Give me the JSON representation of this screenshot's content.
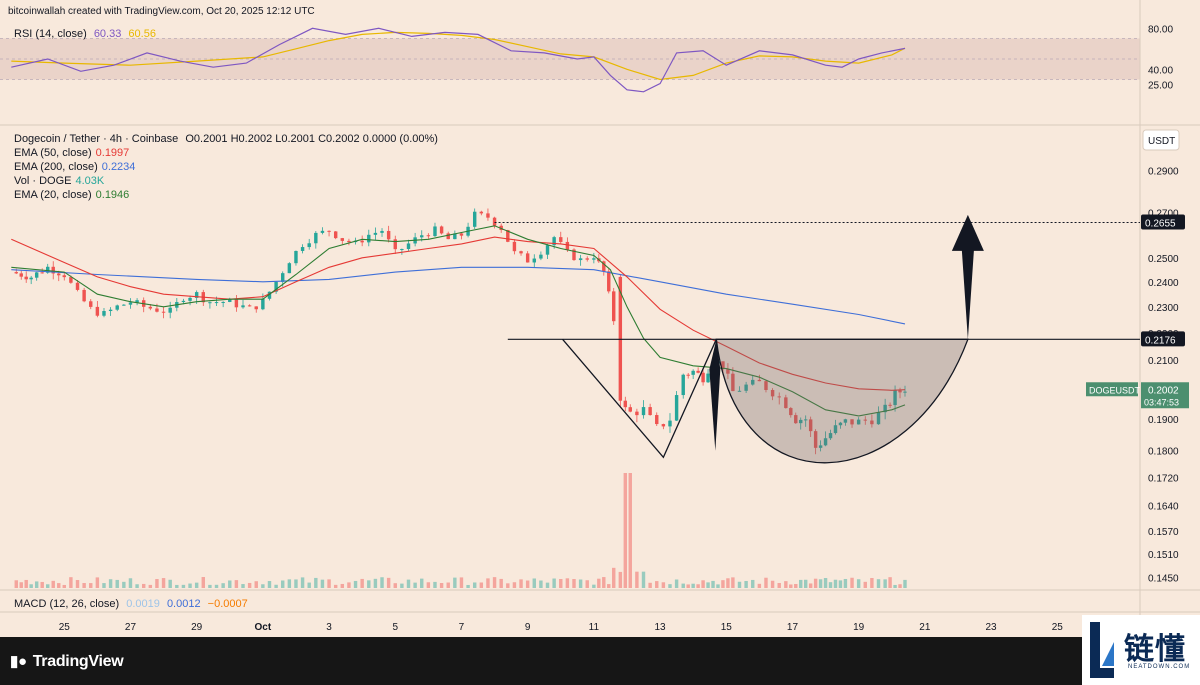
{
  "header": {
    "credit": "bitcoinwallah created with TradingView.com, Oct 20, 2025 12:12 UTC"
  },
  "rsi_legend": {
    "name": "RSI (14, close)",
    "value": "60.33",
    "ma_value": "60.56"
  },
  "main_legend": {
    "symbol": "Dogecoin / Tether · 4h · Coinbase",
    "ohlc": "O0.2001  H0.2002  L0.2001  C0.2002  0.0000 (0.00%)",
    "ema50_label": "EMA (50, close)",
    "ema50_value": "0.1997",
    "ema200_label": "EMA (200, close)",
    "ema200_value": "0.2234",
    "vol_label": "Vol · DOGE",
    "vol_value": "4.03K",
    "ema20_label": "EMA (20, close)",
    "ema20_value": "0.1946"
  },
  "macd_legend": {
    "name": "MACD (12, 26, close)",
    "v1": "0.0019",
    "v2": "0.0012",
    "v3": "−0.0007"
  },
  "badges": {
    "quote": "USDT",
    "target": "0.2655",
    "neckline": "0.2176",
    "symbol": "DOGEUSDT",
    "last": "0.2002",
    "countdown": "03:47:53"
  },
  "colors": {
    "up": "#26a69a",
    "down": "#ef5350",
    "ema20": "#2e7d32",
    "ema50": "#e53935",
    "ema200": "#3f6fd8",
    "rsi": "#7e57c2",
    "rsi_ma": "#e8b800",
    "background": "#f8e9dc"
  },
  "footer": {
    "brand": "TradingView",
    "watermark_cn": "链懂",
    "watermark_en": "NEATDOWN.COM"
  },
  "chart_data": [
    {
      "type": "candlestick",
      "title": "Dogecoin / Tether · 4h · Coinbase",
      "price_ticks": [
        "0.2900",
        "0.2700",
        "0.2500",
        "0.2400",
        "0.2300",
        "0.2200",
        "0.2100",
        "0.2000",
        "0.1900",
        "0.1800",
        "0.1720",
        "0.1640",
        "0.1570",
        "0.1510",
        "0.1450"
      ],
      "x_ticks": [
        "25",
        "27",
        "29",
        "Oct",
        "3",
        "5",
        "7",
        "9",
        "11",
        "13",
        "15",
        "17",
        "19",
        "21",
        "23",
        "25"
      ],
      "x_tick_days": [
        -6,
        -4,
        -2,
        0,
        2,
        4,
        6,
        8,
        10,
        12,
        14,
        16,
        18,
        20,
        22,
        24
      ],
      "ylim": [
        0.1415,
        0.3004
      ],
      "xlim_days": [
        -7.7,
        26.5
      ],
      "scale": "log",
      "close_path": [
        [
          -7.6,
          0.244
        ],
        [
          -7.0,
          0.242
        ],
        [
          -6.5,
          0.246
        ],
        [
          -6.0,
          0.243
        ],
        [
          -5.6,
          0.235
        ],
        [
          -5.2,
          0.229
        ],
        [
          -4.8,
          0.227
        ],
        [
          -4.4,
          0.23
        ],
        [
          -4.0,
          0.232
        ],
        [
          -3.6,
          0.23
        ],
        [
          -3.2,
          0.229
        ],
        [
          -2.8,
          0.228
        ],
        [
          -2.4,
          0.234
        ],
        [
          -2.0,
          0.235
        ],
        [
          -1.6,
          0.232
        ],
        [
          -1.2,
          0.232
        ],
        [
          -0.8,
          0.231
        ],
        [
          -0.4,
          0.229
        ],
        [
          0.0,
          0.232
        ],
        [
          0.4,
          0.24
        ],
        [
          0.8,
          0.249
        ],
        [
          1.2,
          0.256
        ],
        [
          1.6,
          0.26
        ],
        [
          2.0,
          0.262
        ],
        [
          2.4,
          0.258
        ],
        [
          2.8,
          0.256
        ],
        [
          3.2,
          0.26
        ],
        [
          3.6,
          0.262
        ],
        [
          4.0,
          0.252
        ],
        [
          4.4,
          0.256
        ],
        [
          4.8,
          0.26
        ],
        [
          5.2,
          0.262
        ],
        [
          5.6,
          0.258
        ],
        [
          6.0,
          0.26
        ],
        [
          6.4,
          0.269
        ],
        [
          6.8,
          0.268
        ],
        [
          7.2,
          0.263
        ],
        [
          7.6,
          0.252
        ],
        [
          8.0,
          0.249
        ],
        [
          8.4,
          0.253
        ],
        [
          8.8,
          0.259
        ],
        [
          9.2,
          0.252
        ],
        [
          9.6,
          0.249
        ],
        [
          10.0,
          0.251
        ],
        [
          10.3,
          0.244
        ],
        [
          10.6,
          0.225
        ],
        [
          10.8,
          0.194
        ],
        [
          11.1,
          0.192
        ],
        [
          11.5,
          0.193
        ],
        [
          11.9,
          0.187
        ],
        [
          12.3,
          0.19
        ],
        [
          12.7,
          0.205
        ],
        [
          13.0,
          0.206
        ],
        [
          13.3,
          0.204
        ],
        [
          13.6,
          0.21
        ],
        [
          13.9,
          0.208
        ],
        [
          14.2,
          0.199
        ],
        [
          14.6,
          0.201
        ],
        [
          15.0,
          0.202
        ],
        [
          15.4,
          0.199
        ],
        [
          15.8,
          0.195
        ],
        [
          16.1,
          0.19
        ],
        [
          16.4,
          0.19
        ],
        [
          16.7,
          0.181
        ],
        [
          17.0,
          0.184
        ],
        [
          17.3,
          0.187
        ],
        [
          17.6,
          0.189
        ],
        [
          18.0,
          0.189
        ],
        [
          18.4,
          0.19
        ],
        [
          18.8,
          0.193
        ],
        [
          19.1,
          0.198
        ],
        [
          19.4,
          0.2002
        ]
      ],
      "volume_spike_day": 11.0,
      "ema20": [
        [
          -7.6,
          0.246
        ],
        [
          -6,
          0.244
        ],
        [
          -5,
          0.235
        ],
        [
          -4,
          0.232
        ],
        [
          -3,
          0.23
        ],
        [
          -2,
          0.232
        ],
        [
          -1,
          0.233
        ],
        [
          0,
          0.233
        ],
        [
          1,
          0.243
        ],
        [
          2,
          0.254
        ],
        [
          3,
          0.258
        ],
        [
          4,
          0.257
        ],
        [
          5,
          0.258
        ],
        [
          6,
          0.261
        ],
        [
          7,
          0.264
        ],
        [
          8,
          0.258
        ],
        [
          9,
          0.254
        ],
        [
          10,
          0.251
        ],
        [
          10.5,
          0.245
        ],
        [
          11.0,
          0.23
        ],
        [
          11.5,
          0.218
        ],
        [
          12,
          0.211
        ],
        [
          13,
          0.208
        ],
        [
          14,
          0.207
        ],
        [
          15,
          0.204
        ],
        [
          16,
          0.199
        ],
        [
          17,
          0.193
        ],
        [
          18,
          0.191
        ],
        [
          19,
          0.193
        ],
        [
          19.4,
          0.1946
        ]
      ],
      "ema50": [
        [
          -7.6,
          0.258
        ],
        [
          -6,
          0.248
        ],
        [
          -5,
          0.242
        ],
        [
          -4,
          0.238
        ],
        [
          -3,
          0.235
        ],
        [
          -2,
          0.234
        ],
        [
          -1,
          0.233
        ],
        [
          0,
          0.234
        ],
        [
          1,
          0.24
        ],
        [
          2,
          0.246
        ],
        [
          3,
          0.25
        ],
        [
          4,
          0.252
        ],
        [
          5,
          0.254
        ],
        [
          6,
          0.256
        ],
        [
          7,
          0.259
        ],
        [
          8,
          0.257
        ],
        [
          9,
          0.256
        ],
        [
          10,
          0.254
        ],
        [
          11,
          0.242
        ],
        [
          12,
          0.229
        ],
        [
          13,
          0.221
        ],
        [
          14,
          0.215
        ],
        [
          15,
          0.209
        ],
        [
          16,
          0.205
        ],
        [
          17,
          0.202
        ],
        [
          18,
          0.2
        ],
        [
          19,
          0.1995
        ],
        [
          19.4,
          0.1997
        ]
      ],
      "ema200": [
        [
          -7.6,
          0.245
        ],
        [
          -5,
          0.243
        ],
        [
          -2,
          0.241
        ],
        [
          0,
          0.24
        ],
        [
          2,
          0.241
        ],
        [
          4,
          0.244
        ],
        [
          6,
          0.246
        ],
        [
          8,
          0.246
        ],
        [
          10,
          0.245
        ],
        [
          12,
          0.24
        ],
        [
          14,
          0.235
        ],
        [
          16,
          0.231
        ],
        [
          18,
          0.227
        ],
        [
          19.4,
          0.2234
        ]
      ],
      "annotations": [
        {
          "label": "neckline",
          "value": 0.2176,
          "x_from_day": 7.4,
          "x_to_day": 21.3
        },
        {
          "label": "target",
          "value": 0.2655,
          "x_from_day": 7.0,
          "x_to_day": 26.5
        },
        {
          "label": "cup",
          "x_from_day": 13.7,
          "x_to_day": 21.3,
          "bottom": 0.1775
        },
        {
          "label": "adam",
          "x_from_day": 8.3,
          "x_to_day": 13.7,
          "bottom": 0.178
        },
        {
          "label": "arrow-up",
          "x_day": 21.3,
          "to_value": 0.269
        }
      ]
    },
    {
      "type": "line",
      "title": "RSI (14, close)",
      "y_ticks": [
        "80.00",
        "40.00",
        "25.00"
      ],
      "y_tick_values": [
        80,
        40,
        25
      ],
      "ylim": [
        10,
        90
      ],
      "bands": [
        30,
        70
      ],
      "rsi": [
        [
          -7.6,
          42
        ],
        [
          -6.5,
          50
        ],
        [
          -5.5,
          38
        ],
        [
          -4.5,
          44
        ],
        [
          -3.5,
          56
        ],
        [
          -2.5,
          48
        ],
        [
          -1.5,
          42
        ],
        [
          -0.5,
          46
        ],
        [
          0.5,
          64
        ],
        [
          1.5,
          80
        ],
        [
          2.5,
          74
        ],
        [
          3.5,
          80
        ],
        [
          4.5,
          72
        ],
        [
          5.5,
          76
        ],
        [
          6.5,
          74
        ],
        [
          7.5,
          58
        ],
        [
          8.5,
          56
        ],
        [
          9.5,
          50
        ],
        [
          10,
          52
        ],
        [
          10.5,
          34
        ],
        [
          11,
          20
        ],
        [
          11.5,
          18
        ],
        [
          12,
          26
        ],
        [
          12.5,
          56
        ],
        [
          13.3,
          58
        ],
        [
          14,
          44
        ],
        [
          15,
          58
        ],
        [
          16,
          54
        ],
        [
          17,
          44
        ],
        [
          17.5,
          42
        ],
        [
          18,
          50
        ],
        [
          18.7,
          56
        ],
        [
          19.4,
          60.33
        ]
      ],
      "rsi_ma": [
        [
          -7.6,
          48
        ],
        [
          -6,
          46
        ],
        [
          -4,
          44
        ],
        [
          -2,
          48
        ],
        [
          0,
          52
        ],
        [
          1,
          60
        ],
        [
          2,
          68
        ],
        [
          3,
          74
        ],
        [
          4,
          76
        ],
        [
          5,
          75
        ],
        [
          6,
          73
        ],
        [
          7,
          69
        ],
        [
          8,
          62
        ],
        [
          9,
          55
        ],
        [
          10,
          52
        ],
        [
          11,
          40
        ],
        [
          12,
          30
        ],
        [
          13,
          34
        ],
        [
          14,
          46
        ],
        [
          15,
          53
        ],
        [
          16,
          52
        ],
        [
          17,
          48
        ],
        [
          18,
          46
        ],
        [
          19,
          54
        ],
        [
          19.4,
          60.56
        ]
      ]
    }
  ]
}
